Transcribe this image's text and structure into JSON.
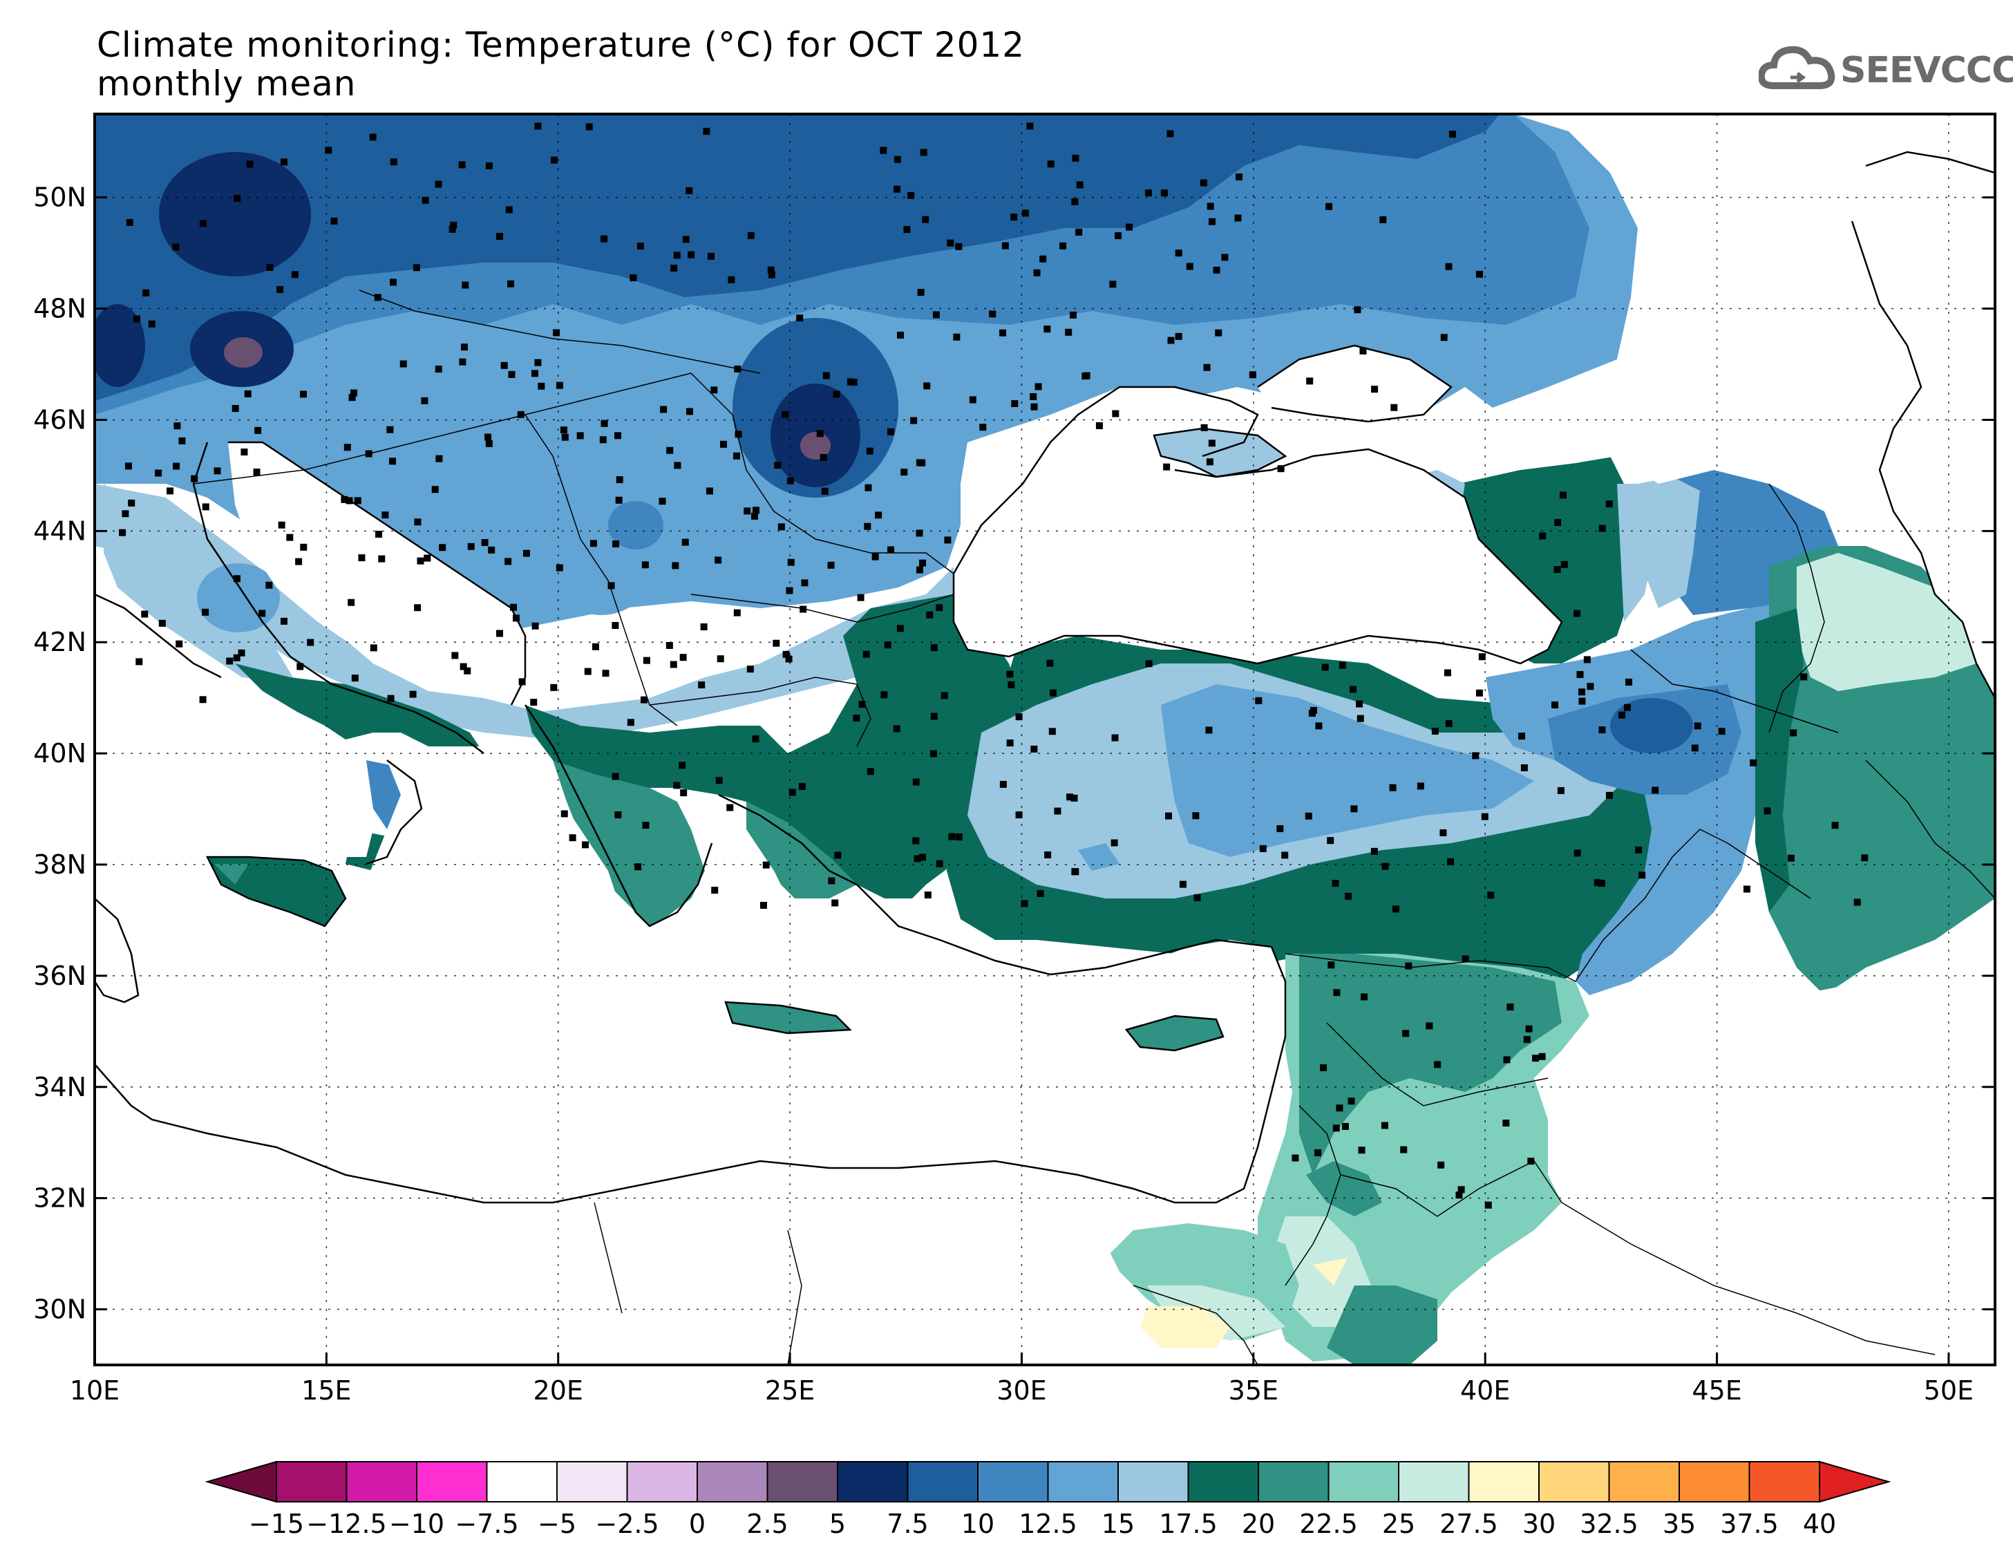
{
  "title": {
    "line1": "Climate monitoring: Temperature (°C) for OCT 2012",
    "line2": "monthly mean"
  },
  "logo": {
    "text": "SEEVCCC",
    "icon": "cloud-icon"
  },
  "map": {
    "region": "Balkans, Eastern Mediterranean, Black Sea, Anatolia, Levant",
    "lon_range": [
      10,
      51
    ],
    "lat_range": [
      29,
      51.5
    ],
    "lon_ticks": [
      "10E",
      "15E",
      "20E",
      "25E",
      "30E",
      "35E",
      "40E",
      "45E",
      "50E"
    ],
    "lat_ticks": [
      "30N",
      "32N",
      "34N",
      "36N",
      "38N",
      "40N",
      "42N",
      "44N",
      "46N",
      "48N",
      "50N"
    ],
    "grid": "dotted"
  },
  "colorbar": {
    "labels": [
      "−15",
      "−12.5",
      "−10",
      "−7.5",
      "−5",
      "−2.5",
      "0",
      "2.5",
      "5",
      "7.5",
      "10",
      "12.5",
      "15",
      "17.5",
      "20",
      "22.5",
      "25",
      "27.5",
      "30",
      "32.5",
      "35",
      "37.5",
      "40"
    ],
    "colors": [
      "#6e0a3c",
      "#a4106c",
      "#d21aa8",
      "#ff2ed0",
      "#ffffff",
      "#f2e6f6",
      "#dbb6e4",
      "#ab86bb",
      "#6a5070",
      "#0b2c66",
      "#1f5e9c",
      "#3f86c0",
      "#62a4d4",
      "#9bc7e1",
      "#0a6b5b",
      "#2f9282",
      "#7fcfbd",
      "#c8ebe1",
      "#fff8c6",
      "#ffd679",
      "#ffb048",
      "#ff8b32",
      "#f55828",
      "#e02020"
    ]
  }
}
